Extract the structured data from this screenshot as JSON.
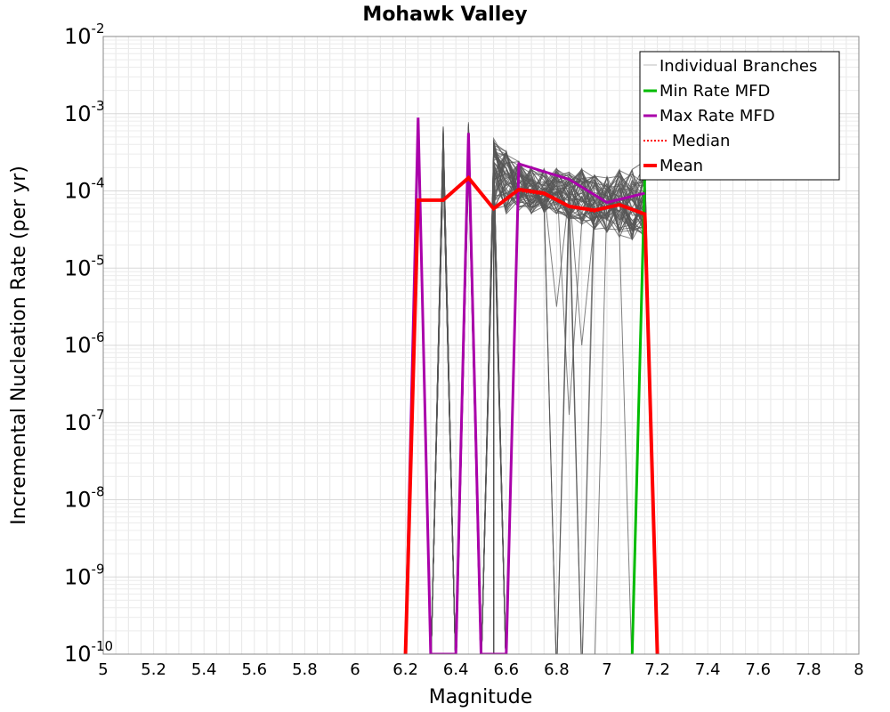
{
  "chart_data": {
    "type": "line",
    "title": "Mohawk Valley",
    "xlabel": "Magnitude",
    "ylabel": "Incremental Nucleation Rate (per yr)",
    "xlim": [
      5,
      8
    ],
    "ylim_log10": [
      -10,
      -2
    ],
    "y_scale": "log",
    "x_ticks": [
      "5",
      "5.2",
      "5.4",
      "5.6",
      "5.8",
      "6",
      "6.2",
      "6.4",
      "6.6",
      "6.8",
      "7",
      "7.2",
      "7.4",
      "7.6",
      "7.8",
      "8"
    ],
    "y_ticks": [
      {
        "base": "10",
        "exp": "-2"
      },
      {
        "base": "10",
        "exp": "-3"
      },
      {
        "base": "10",
        "exp": "-4"
      },
      {
        "base": "10",
        "exp": "-5"
      },
      {
        "base": "10",
        "exp": "-6"
      },
      {
        "base": "10",
        "exp": "-7"
      },
      {
        "base": "10",
        "exp": "-8"
      },
      {
        "base": "10",
        "exp": "-9"
      },
      {
        "base": "10",
        "exp": "-10"
      }
    ],
    "grid": true,
    "legend_position": "top-right",
    "series": [
      {
        "name": "Min Rate MFD",
        "color": "#00bb00",
        "style": "solid",
        "x": [
          7.1,
          7.15
        ],
        "y_log10": [
          -10,
          -3.8
        ]
      },
      {
        "name": "Max Rate MFD",
        "color": "#aa00aa",
        "style": "solid",
        "x": [
          6.2,
          6.25,
          6.3,
          6.4,
          6.45,
          6.5,
          6.6,
          6.65,
          6.85,
          7.0,
          7.15
        ],
        "y_log10": [
          -10,
          -3.05,
          -10,
          -10,
          -3.25,
          -10,
          -10,
          -3.65,
          -3.85,
          -4.15,
          -4.03
        ]
      },
      {
        "name": "Median",
        "color": "#ff0000",
        "style": "dotted",
        "x": [
          6.2,
          6.25,
          6.35,
          6.45,
          6.55,
          6.65,
          6.75,
          6.85,
          6.95,
          7.05,
          7.15,
          7.2
        ],
        "y_log10": [
          -10,
          -4.12,
          -4.12,
          -3.85,
          -4.22,
          -4.0,
          -4.05,
          -4.2,
          -4.27,
          -4.17,
          -4.32,
          -10
        ]
      },
      {
        "name": "Mean",
        "color": "#ff0000",
        "style": "thick",
        "x": [
          6.2,
          6.25,
          6.35,
          6.45,
          6.55,
          6.65,
          6.75,
          6.85,
          6.95,
          7.05,
          7.15,
          7.2
        ],
        "y_log10": [
          -10,
          -4.12,
          -4.12,
          -3.83,
          -4.23,
          -3.98,
          -4.03,
          -4.2,
          -4.25,
          -4.18,
          -4.3,
          -10
        ]
      }
    ],
    "branches": {
      "name": "Individual Branches",
      "color": "#555555",
      "count": 60,
      "spike_x": [
        6.35,
        6.45,
        6.55
      ],
      "spike_peak_log10": [
        -3.15,
        -3.1,
        -3.45
      ],
      "band_x": [
        6.55,
        6.6,
        6.65,
        6.7,
        6.75,
        6.8,
        6.85,
        6.9,
        6.95,
        7.0,
        7.05,
        7.1,
        7.15
      ],
      "band_low_log10": [
        -4.25,
        -4.3,
        -4.25,
        -4.3,
        -4.3,
        -4.3,
        -4.4,
        -4.45,
        -4.5,
        -4.55,
        -4.6,
        -4.65,
        -4.6
      ],
      "band_high_log10": [
        -3.3,
        -3.45,
        -3.6,
        -3.65,
        -3.65,
        -3.7,
        -3.75,
        -3.7,
        -3.75,
        -3.8,
        -3.7,
        -3.7,
        -3.6
      ],
      "dips": [
        {
          "x": 6.85,
          "y_log10": -6.9
        },
        {
          "x": 6.9,
          "y_log10": -6.0
        },
        {
          "x": 6.8,
          "y_log10": -5.5
        }
      ]
    },
    "legend": [
      "Individual Branches",
      "Min Rate MFD",
      "Max Rate MFD",
      "Median",
      "Mean"
    ]
  }
}
